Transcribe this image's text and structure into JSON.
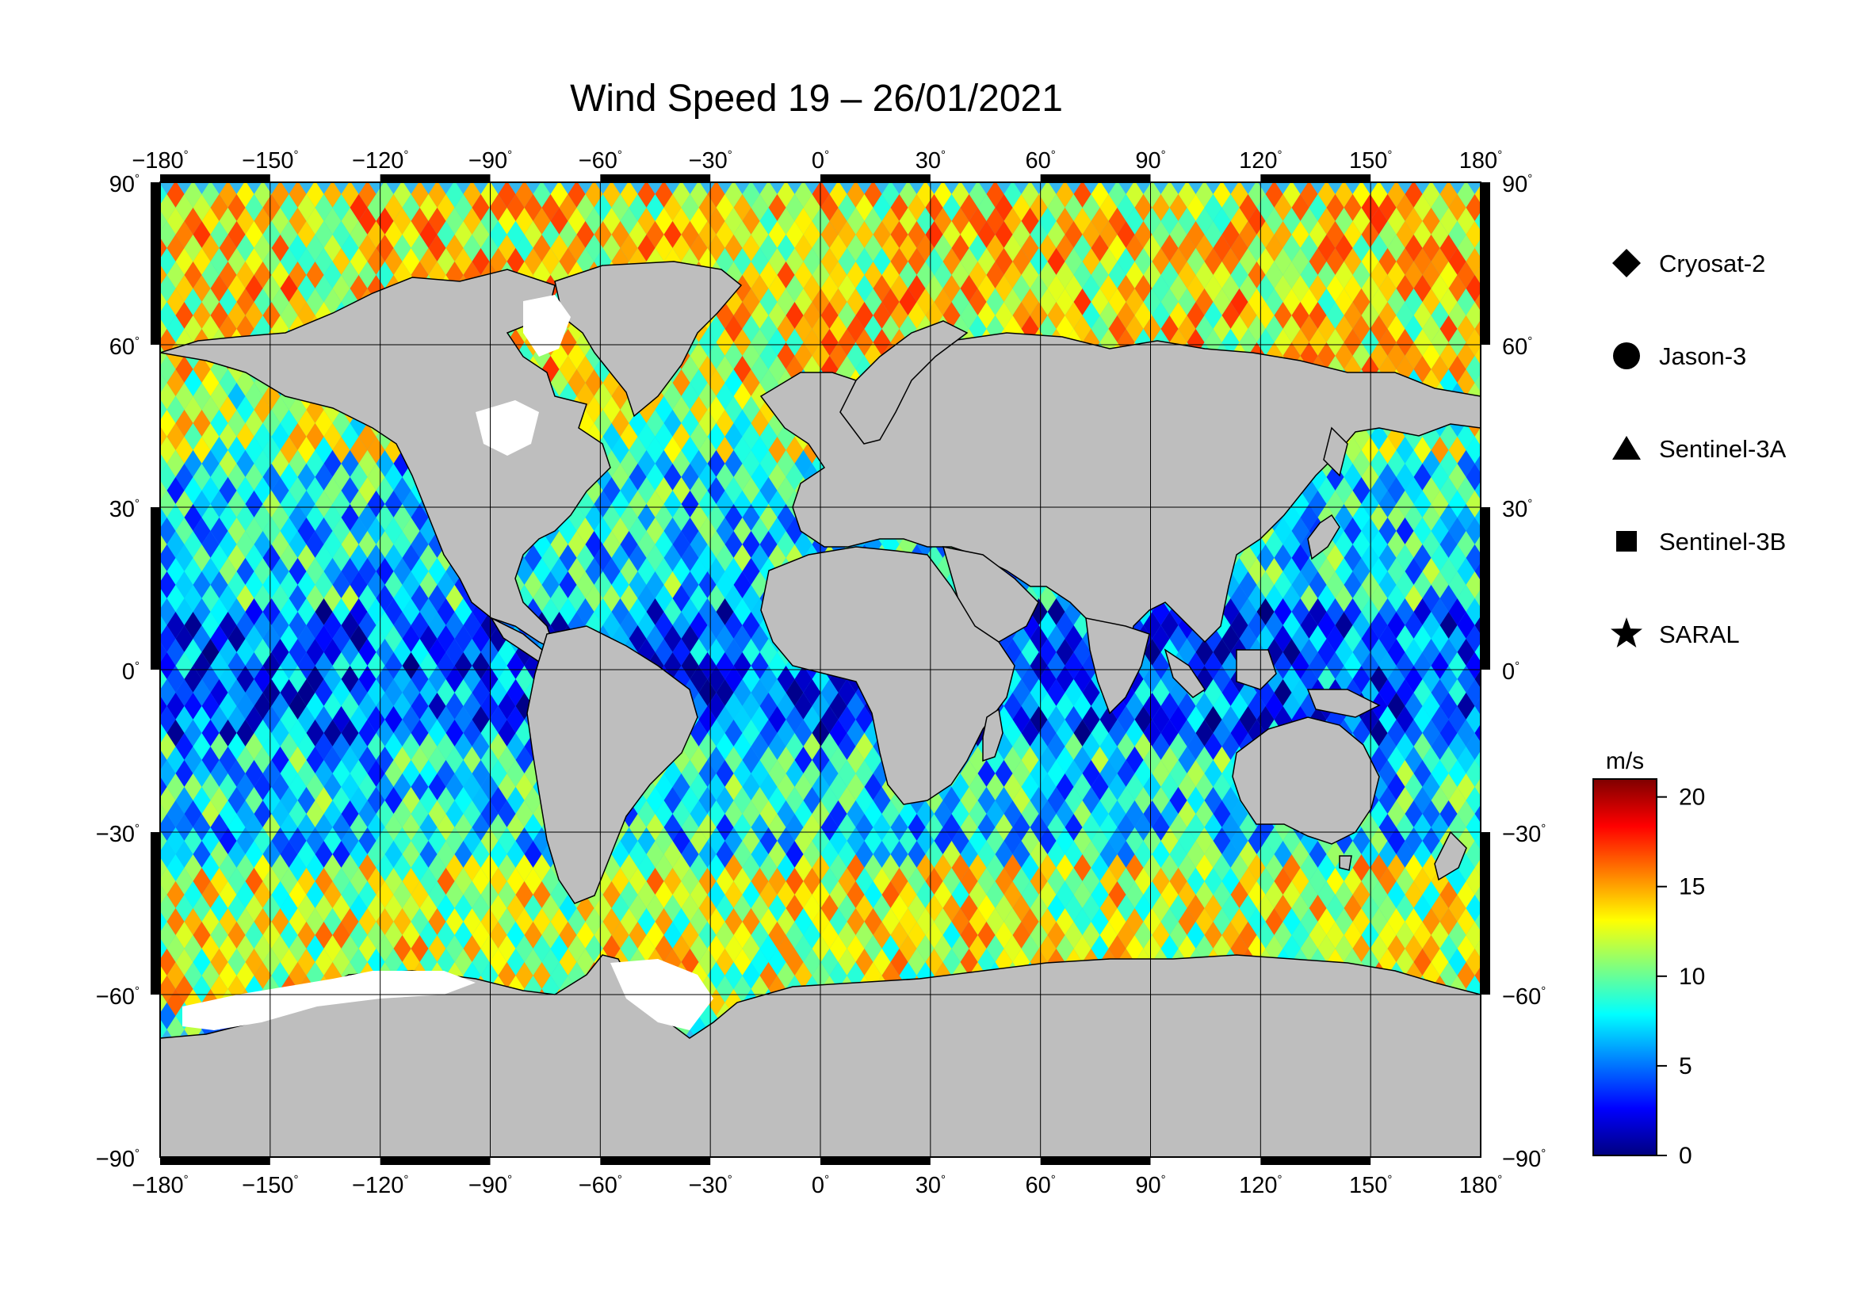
{
  "map": {
    "title": "Wind Speed 19 – 26/01/2021",
    "lon_labels": [
      "−180",
      "−150",
      "−120",
      "−90",
      "−60",
      "−30",
      "0",
      "30",
      "60",
      "90",
      "120",
      "150",
      "180"
    ],
    "lat_labels": [
      "90",
      "60",
      "30",
      "0",
      "−30",
      "−60",
      "−90"
    ],
    "lon_range": [
      -180,
      180
    ],
    "lat_range": [
      -90,
      90
    ],
    "grid": true,
    "land_color": "#bebebe",
    "ice_color": "#ffffff"
  },
  "legend": {
    "items": [
      {
        "symbol": "diamond",
        "label": "Cryosat-2"
      },
      {
        "symbol": "circle",
        "label": "Jason-3"
      },
      {
        "symbol": "triangle",
        "label": "Sentinel-3A"
      },
      {
        "symbol": "square",
        "label": "Sentinel-3B"
      },
      {
        "symbol": "star",
        "label": "SARAL"
      }
    ]
  },
  "colorbar": {
    "unit": "m/s",
    "ticks": [
      "20",
      "15",
      "10",
      "5",
      "0"
    ],
    "range": [
      0,
      21
    ],
    "stops": [
      "#00007f",
      "#0000ff",
      "#007fff",
      "#00ffff",
      "#7fff7f",
      "#ffff00",
      "#ff7f00",
      "#ff0000",
      "#7f0000"
    ]
  }
}
